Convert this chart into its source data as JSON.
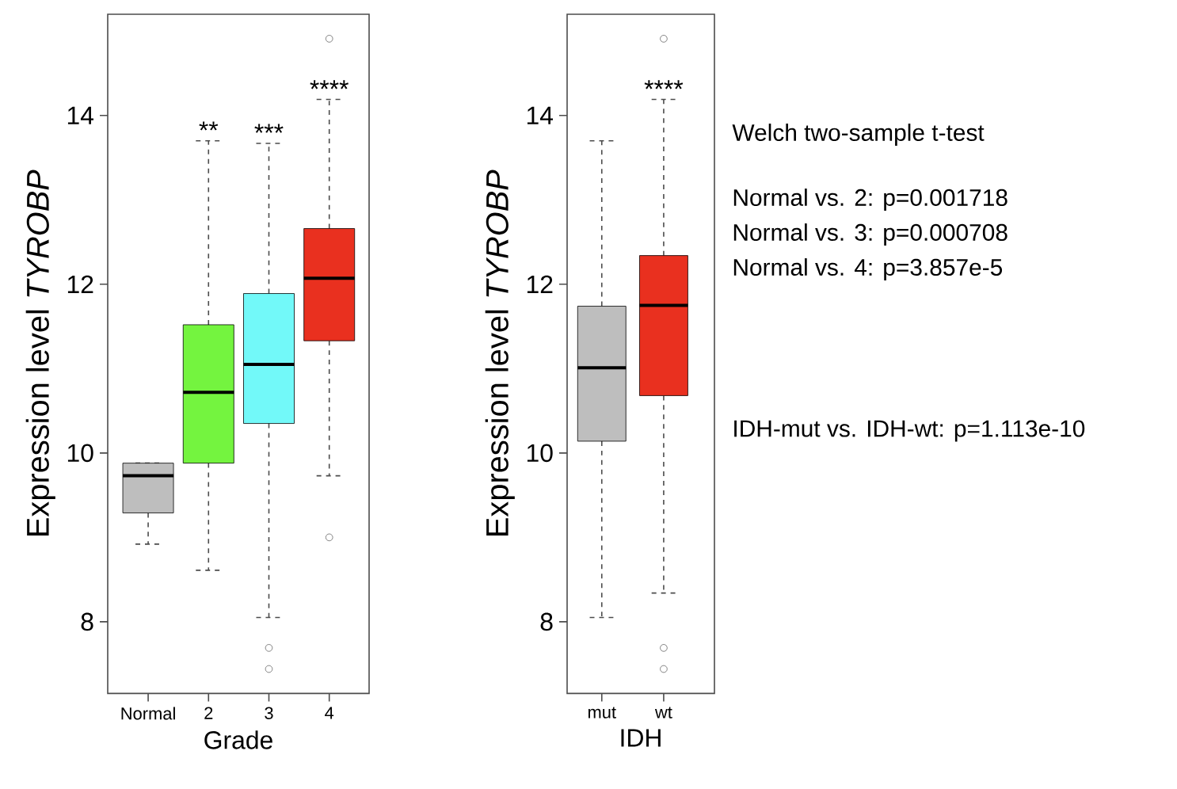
{
  "chart_data": [
    {
      "type": "box",
      "xlabel": "Grade",
      "ylabel": "Expression level *TYROBP*",
      "categories": [
        "Normal",
        "2",
        "3",
        "4"
      ],
      "colors": [
        "#bebebe",
        "#74f43f",
        "#72f9f9",
        "#e9301f"
      ],
      "boxes": [
        {
          "low": 8.92,
          "q1": 9.29,
          "median": 9.73,
          "q3": 9.88,
          "high": 9.88
        },
        {
          "low": 8.61,
          "q1": 9.88,
          "median": 10.72,
          "q3": 11.52,
          "high": 13.7
        },
        {
          "low": 8.05,
          "q1": 10.35,
          "median": 11.05,
          "q3": 11.89,
          "high": 13.67,
          "outliers": [
            7.69,
            7.44
          ]
        },
        {
          "low": 9.73,
          "q1": 11.33,
          "median": 12.07,
          "q3": 12.66,
          "high": 14.19,
          "outliers": [
            14.91,
            9.0
          ]
        }
      ],
      "ylim": [
        7.15,
        15.2
      ],
      "yticks": [
        8,
        10,
        12,
        14
      ],
      "annotations": [
        {
          "text": "**",
          "x": "2",
          "y": 13.7
        },
        {
          "text": "***",
          "x": "3",
          "y": 13.67
        },
        {
          "text": "****",
          "x": "4",
          "y": 14.19
        }
      ]
    },
    {
      "type": "box",
      "xlabel": "IDH",
      "ylabel": "Expression level *TYROBP*",
      "categories": [
        "mut",
        "wt"
      ],
      "colors": [
        "#bebebe",
        "#e9301f"
      ],
      "boxes": [
        {
          "low": 8.05,
          "q1": 10.14,
          "median": 11.01,
          "q3": 11.74,
          "high": 13.7
        },
        {
          "low": 8.34,
          "q1": 10.68,
          "median": 11.75,
          "q3": 12.34,
          "high": 14.19,
          "outliers": [
            14.91,
            7.69,
            7.44
          ]
        }
      ],
      "ylim": [
        7.15,
        15.2
      ],
      "yticks": [
        8,
        10,
        12,
        14
      ],
      "annotations": [
        {
          "text": "****",
          "x": "wt",
          "y": 14.19
        }
      ]
    },
    {
      "type": "other",
      "title": "Welch two-sample t-test",
      "annotations": [
        "Normal vs. 2: p=0.001718",
        "Normal vs. 3: p=0.000708",
        "Normal vs. 4: p=3.857e-5",
        "IDH-mut vs. IDH-wt: p=1.113e-10"
      ]
    }
  ]
}
